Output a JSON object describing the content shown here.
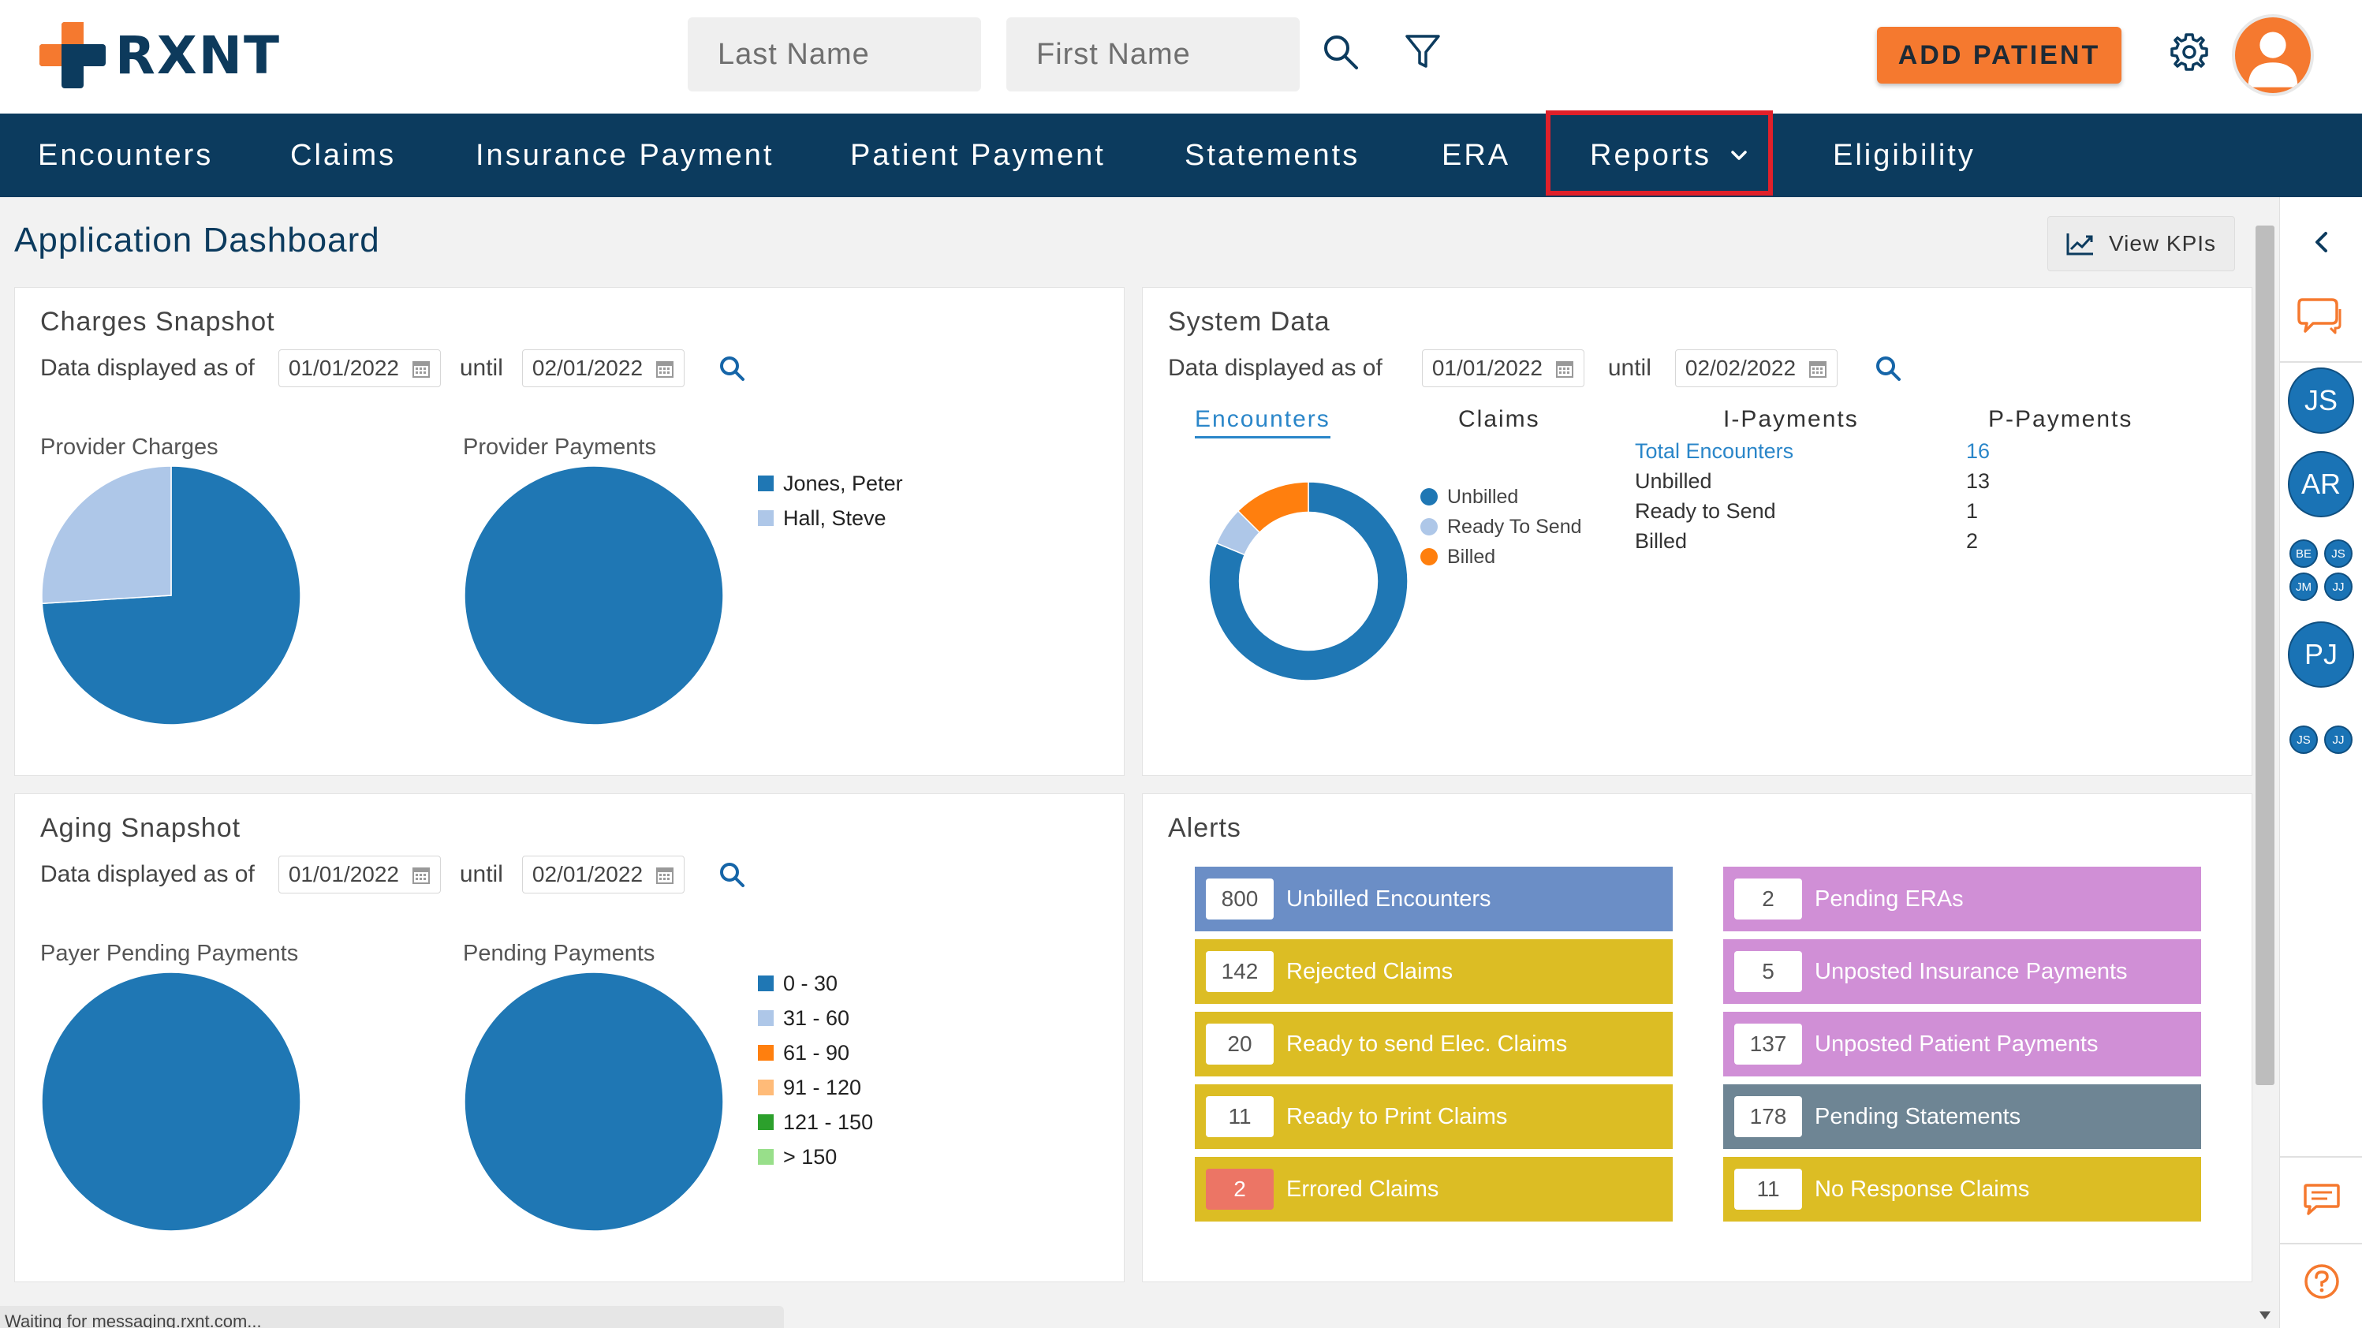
{
  "header": {
    "logo_text": "RXNT",
    "last_name_placeholder": "Last Name",
    "first_name_placeholder": "First Name",
    "add_patient_label": "ADD PATIENT"
  },
  "nav": {
    "items": [
      "Encounters",
      "Claims",
      "Insurance Payment",
      "Patient Payment",
      "Statements",
      "ERA",
      "Reports",
      "Eligibility"
    ],
    "highlighted": "Reports"
  },
  "page": {
    "title": "Application Dashboard",
    "view_kpis_label": "View KPIs"
  },
  "charges_snapshot": {
    "title": "Charges Snapshot",
    "data_label": "Data displayed as of",
    "from_date": "01/01/2022",
    "until_label": "until",
    "to_date": "02/01/2022",
    "provider_charges_label": "Provider Charges",
    "provider_payments_label": "Provider Payments",
    "legend": [
      "Jones, Peter",
      "Hall, Steve"
    ]
  },
  "system_data": {
    "title": "System Data",
    "data_label": "Data displayed as of",
    "from_date": "01/01/2022",
    "until_label": "until",
    "to_date": "02/02/2022",
    "tabs": [
      "Encounters",
      "Claims",
      "I-Payments",
      "P-Payments"
    ],
    "legend": [
      "Unbilled",
      "Ready To Send",
      "Billed"
    ],
    "rows": [
      {
        "label": "Total Encounters",
        "value": "16"
      },
      {
        "label": "Unbilled",
        "value": "13"
      },
      {
        "label": "Ready to Send",
        "value": "1"
      },
      {
        "label": "Billed",
        "value": "2"
      }
    ]
  },
  "aging_snapshot": {
    "title": "Aging Snapshot",
    "data_label": "Data displayed as of",
    "from_date": "01/01/2022",
    "until_label": "until",
    "to_date": "02/01/2022",
    "payer_pending_label": "Payer Pending Payments",
    "pending_payments_label": "Pending Payments",
    "legend": [
      "0 - 30",
      "31 - 60",
      "61 - 90",
      "91 - 120",
      "121 - 150",
      "> 150"
    ]
  },
  "alerts": {
    "title": "Alerts",
    "left": [
      {
        "count": "800",
        "label": "Unbilled Encounters"
      },
      {
        "count": "142",
        "label": "Rejected Claims"
      },
      {
        "count": "20",
        "label": "Ready to send Elec. Claims"
      },
      {
        "count": "11",
        "label": "Ready to Print Claims"
      },
      {
        "count": "2",
        "label": "Errored Claims"
      }
    ],
    "right": [
      {
        "count": "2",
        "label": "Pending ERAs"
      },
      {
        "count": "5",
        "label": "Unposted Insurance Payments"
      },
      {
        "count": "137",
        "label": "Unposted Patient Payments"
      },
      {
        "count": "178",
        "label": "Pending Statements"
      },
      {
        "count": "11",
        "label": "No Response Claims"
      }
    ]
  },
  "rail": {
    "large_avatars": [
      "JS",
      "AR",
      "PJ"
    ],
    "small_group_1": [
      "BE",
      "JS",
      "JM",
      "JJ"
    ],
    "small_group_2": [
      "JS",
      "JJ"
    ]
  },
  "status_bar": "Waiting for messaging.rxnt.com...",
  "chart_data": [
    {
      "type": "pie",
      "title": "Provider Charges",
      "labels": [
        "Jones, Peter",
        "Hall, Steve"
      ],
      "values": [
        74,
        26
      ],
      "colors": [
        "#1f77b4",
        "#aec7e8"
      ]
    },
    {
      "type": "pie",
      "title": "Provider Payments",
      "labels": [
        "Jones, Peter",
        "Hall, Steve"
      ],
      "values": [
        100,
        0
      ],
      "colors": [
        "#1f77b4",
        "#aec7e8"
      ]
    },
    {
      "type": "pie",
      "subtype": "donut",
      "labels": [
        "Unbilled",
        "Ready To Send",
        "Billed"
      ],
      "values": [
        13,
        1,
        2
      ],
      "colors": [
        "#1f77b4",
        "#aec7e8",
        "#ff7f0e"
      ]
    },
    {
      "type": "pie",
      "title": "Payer Pending Payments",
      "labels": [
        "0 - 30",
        "31 - 60",
        "61 - 90",
        "91 - 120",
        "121 - 150",
        "> 150"
      ],
      "values": [
        100,
        0,
        0,
        0,
        0,
        0
      ],
      "colors": [
        "#1f77b4",
        "#aec7e8",
        "#ff7f0e",
        "#ffbb78",
        "#2ca02c",
        "#98df8a"
      ]
    },
    {
      "type": "pie",
      "title": "Pending Payments",
      "labels": [
        "0 - 30",
        "31 - 60",
        "61 - 90",
        "91 - 120",
        "121 - 150",
        "> 150"
      ],
      "values": [
        100,
        0,
        0,
        0,
        0,
        0
      ],
      "colors": [
        "#1f77b4",
        "#aec7e8",
        "#ff7f0e",
        "#ffbb78",
        "#2ca02c",
        "#98df8a"
      ]
    }
  ]
}
